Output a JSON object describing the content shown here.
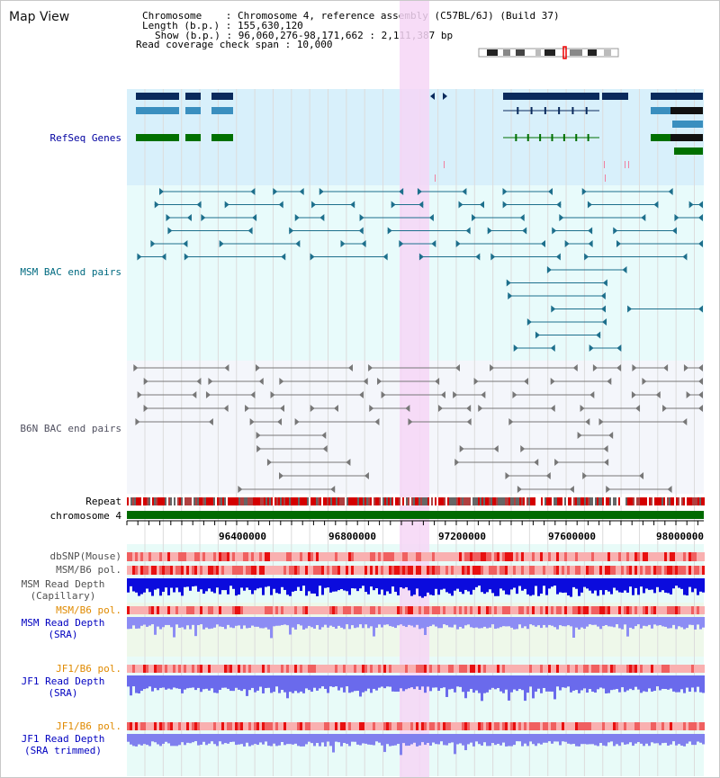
{
  "view": {
    "title": "Map View",
    "info": {
      "chromosome": "Chromosome    : Chromosome 4, reference assembly (C57BL/6J) (Build 37)",
      "length": "Length (b.p.) : 155,630,120",
      "show": "Show (b.p.) : 96,060,276-98,171,662 : 2,111,387 bp",
      "coverage": "Read coverage check span : 10,000"
    }
  },
  "tracks": {
    "refseq": "RefSeq Genes",
    "msm_bac": "MSM BAC end pairs",
    "b6n_bac": "B6N BAC end pairs",
    "repeat": "Repeat",
    "chromosome": "chromosome 4",
    "dbsnp": "dbSNP(Mouse)",
    "msm_b6_pol_1": "MSM/B6 pol.",
    "msm_depth_cap_1": "MSM Read Depth",
    "msm_depth_cap_2": "(Capillary)",
    "msm_b6_pol_2": "MSM/B6 pol.",
    "msm_depth_sra_1": "MSM Read Depth",
    "msm_depth_sra_2": "(SRA)",
    "jf1_pol_1": "JF1/B6 pol.",
    "jf1_depth_sra_1": "JF1 Read Depth",
    "jf1_depth_sra_2": "(SRA)",
    "jf1_pol_2": "JF1/B6 pol.",
    "jf1_depth_trim_1": "JF1 Read Depth",
    "jf1_depth_trim_2": "(SRA trimmed)"
  },
  "axis": {
    "ticks": [
      "96400000",
      "96800000",
      "97200000",
      "97600000",
      "98000000"
    ]
  },
  "colors": {
    "refseq_bg": "#d8f0fb",
    "msm_bg": "#e8fbfb",
    "b6n_bg": "#f4f6fb",
    "lower_bg": "#e8fbf8",
    "highlight": "#f6d6f6",
    "refseq_label": "#0000a0",
    "msm_label": "#006a80",
    "b6n_label": "#505060",
    "pol_orange": "#e08a00",
    "sra_blue": "#0000c0",
    "gene_navy": "#0a2a5c",
    "gene_teal": "#3a8fbf",
    "gene_green": "#007000",
    "chromosome_green": "#006a00",
    "repeat_red": "#d40000"
  }
}
